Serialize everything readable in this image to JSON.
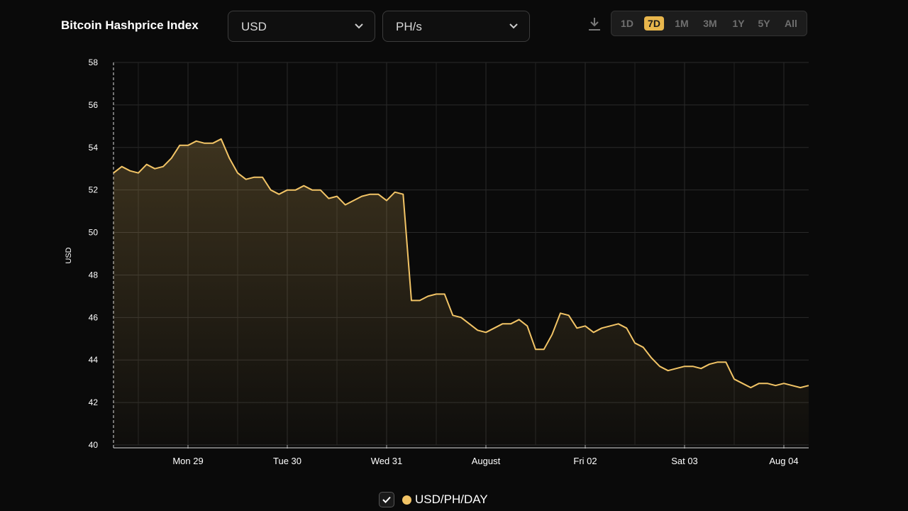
{
  "chart_data": {
    "type": "line",
    "title": "Bitcoin Hashprice Index",
    "ylabel": "USD",
    "ylim": [
      40,
      58
    ],
    "yticks": [
      40,
      42,
      44,
      46,
      48,
      50,
      52,
      54,
      56,
      58
    ],
    "grid": true,
    "categories": [
      null,
      null,
      null,
      null,
      null,
      null,
      null,
      null,
      null,
      "Mon 29",
      null,
      null,
      null,
      null,
      null,
      null,
      null,
      null,
      null,
      null,
      null,
      "Tue 30",
      null,
      null,
      null,
      null,
      null,
      null,
      null,
      null,
      null,
      null,
      null,
      "Wed 31",
      null,
      null,
      null,
      null,
      null,
      null,
      null,
      null,
      null,
      null,
      null,
      "August",
      null,
      null,
      null,
      null,
      null,
      null,
      null,
      null,
      null,
      null,
      null,
      "Fri 02",
      null,
      null,
      null,
      null,
      null,
      null,
      null,
      null,
      null,
      null,
      null,
      "Sat 03",
      null,
      null,
      null,
      null,
      null,
      null,
      null,
      null,
      null,
      null,
      null,
      "Aug 04",
      null,
      null,
      null
    ],
    "series": [
      {
        "name": "USD/PH/DAY",
        "color": "#f2c466",
        "values": [
          52.8,
          53.1,
          52.9,
          52.8,
          53.2,
          53.0,
          53.1,
          53.5,
          54.1,
          54.1,
          54.3,
          54.2,
          54.2,
          54.4,
          53.5,
          52.8,
          52.5,
          52.6,
          52.6,
          52.0,
          51.8,
          52.0,
          52.0,
          52.2,
          52.0,
          52.0,
          51.6,
          51.7,
          51.3,
          51.5,
          51.7,
          51.8,
          51.8,
          51.5,
          51.9,
          51.8,
          46.8,
          46.8,
          47.0,
          47.1,
          47.1,
          46.1,
          46.0,
          45.7,
          45.4,
          45.3,
          45.5,
          45.7,
          45.7,
          45.9,
          45.6,
          44.5,
          44.5,
          45.2,
          46.2,
          46.1,
          45.5,
          45.6,
          45.3,
          45.5,
          45.6,
          45.7,
          45.5,
          44.8,
          44.6,
          44.1,
          43.7,
          43.5,
          43.6,
          43.7,
          43.7,
          43.6,
          43.8,
          43.9,
          43.9,
          43.1,
          42.9,
          42.7,
          42.9,
          42.9,
          42.8,
          42.9,
          42.8,
          42.7,
          42.8
        ]
      }
    ]
  },
  "controls": {
    "currency": "USD",
    "unit": "PH/s",
    "ranges": [
      "1D",
      "7D",
      "1M",
      "3M",
      "1Y",
      "5Y",
      "All"
    ],
    "active_range": "7D"
  }
}
